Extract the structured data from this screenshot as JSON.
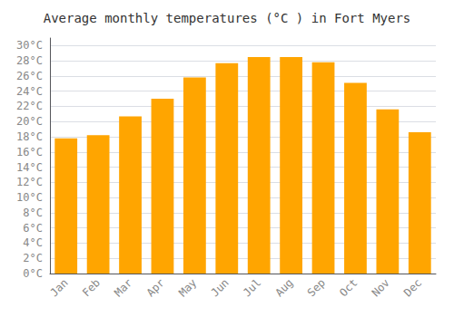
{
  "chart_data": {
    "type": "bar",
    "title": "Average monthly temperatures (°C ) in Fort Myers",
    "categories": [
      "Jan",
      "Feb",
      "Mar",
      "Apr",
      "May",
      "Jun",
      "Jul",
      "Aug",
      "Sep",
      "Oct",
      "Nov",
      "Dec"
    ],
    "values": [
      17.8,
      18.2,
      20.7,
      23.0,
      25.8,
      27.7,
      28.5,
      28.5,
      27.8,
      25.1,
      21.6,
      18.6
    ],
    "color": "#FFA500",
    "ylim": [
      0,
      31
    ],
    "yticks": [
      {
        "value": 0,
        "label": "0°C"
      },
      {
        "value": 2,
        "label": "2°C"
      },
      {
        "value": 4,
        "label": "4°C"
      },
      {
        "value": 6,
        "label": "6°C"
      },
      {
        "value": 8,
        "label": "8°C"
      },
      {
        "value": 10,
        "label": "10°C"
      },
      {
        "value": 12,
        "label": "12°C"
      },
      {
        "value": 14,
        "label": "14°C"
      },
      {
        "value": 16,
        "label": "16°C"
      },
      {
        "value": 18,
        "label": "18°C"
      },
      {
        "value": 20,
        "label": "20°C"
      },
      {
        "value": 22,
        "label": "22°C"
      },
      {
        "value": 24,
        "label": "24°C"
      },
      {
        "value": 26,
        "label": "26°C"
      },
      {
        "value": 28,
        "label": "28°C"
      },
      {
        "value": 30,
        "label": "30°C"
      }
    ],
    "grid": true
  }
}
